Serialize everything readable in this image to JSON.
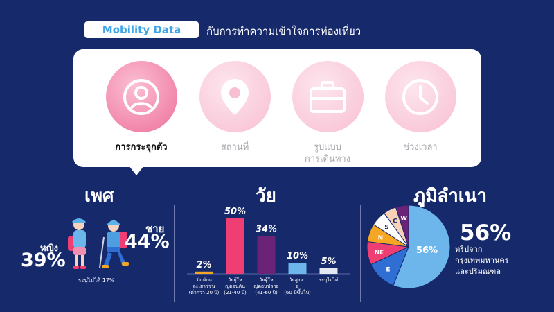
{
  "header": {
    "pill": "Mobility Data",
    "subtitle": "กับการทำความเข้าใจการท่องเที่ยว"
  },
  "categories": [
    {
      "label": "การกระจุกตัว",
      "icon": "person-icon",
      "active": true
    },
    {
      "label": "สถานที่",
      "icon": "location-pin-icon",
      "active": false
    },
    {
      "label": "รูปแบบ\nการเดินทาง",
      "icon": "briefcase-icon",
      "active": false
    },
    {
      "label": "ช่วงเวลา",
      "icon": "clock-icon",
      "active": false
    }
  ],
  "sections": {
    "gender": "เพศ",
    "age": "วัย",
    "origin": "ภูมิลำเนา"
  },
  "gender": {
    "female_label": "หญิง",
    "female_value": "39%",
    "male_label": "ชาย",
    "male_value": "44%",
    "note": "ระบุไม่ได้ 17%"
  },
  "colors": {
    "background": "#16296b",
    "pink": "#ee3e73",
    "purple": "#6b2377",
    "orange": "#f5a623",
    "lightblue": "#6cb6ec",
    "blue": "#2f6fd3"
  },
  "chart_data": [
    {
      "type": "bar",
      "title": "วัย",
      "categories": [
        "วัยเด็กและเยาวชน (ต่ำกว่า 20 ปี)",
        "วัยผู้ใหญ่ตอนต้น (21-40 ปี)",
        "วัยผู้ใหญ่ตอนปลาย (41-60 ปี)",
        "วัยสูงอายุ (60 ปีขึ้นไป)",
        "ระบุไม่ได้"
      ],
      "values": [
        2,
        50,
        34,
        10,
        5
      ],
      "value_labels": [
        "2%",
        "50%",
        "34%",
        "10%",
        "5%"
      ],
      "bar_colors": [
        "#f5a623",
        "#ee3e73",
        "#6b2377",
        "#6cb6ec",
        "#e3e8f3"
      ],
      "ylim": [
        0,
        50
      ]
    },
    {
      "type": "pie",
      "title": "ภูมิลำเนา",
      "labels": [
        "56%",
        "E",
        "NE",
        "N",
        "S",
        "C",
        "W"
      ],
      "values": [
        56,
        12,
        9,
        7,
        6,
        5,
        5
      ],
      "colors": [
        "#6cb6ec",
        "#2f6fd3",
        "#ee3e73",
        "#f5a623",
        "#ffffff",
        "#f7d2b6",
        "#6b2377"
      ],
      "highlight_value": "56%",
      "highlight_caption": "ทริปจาก\nกรุงเทพมหานคร\nและปริมณฑล"
    }
  ]
}
